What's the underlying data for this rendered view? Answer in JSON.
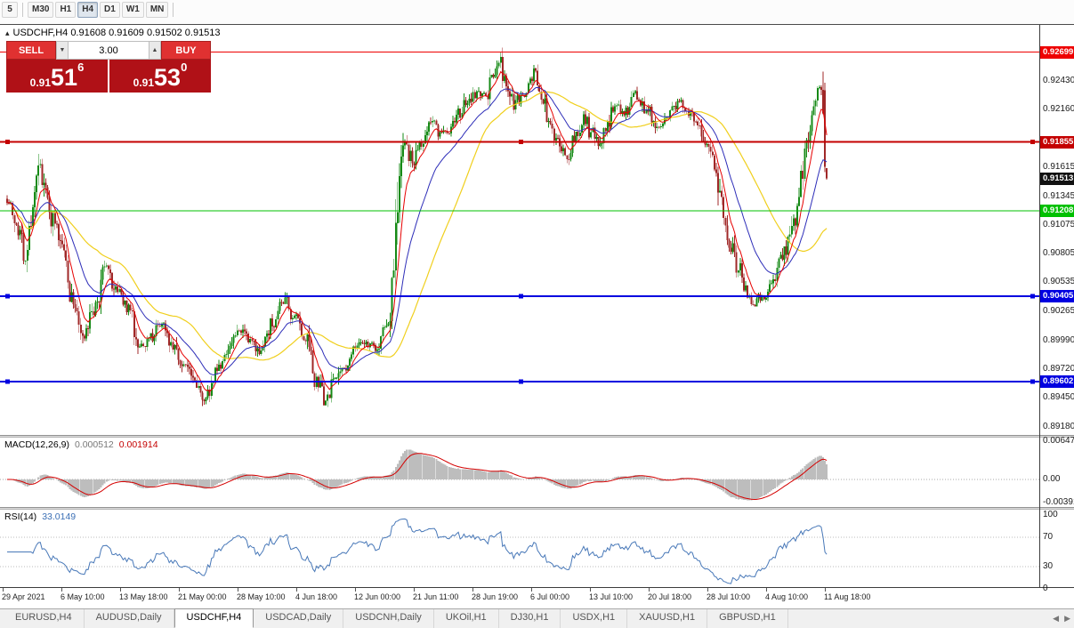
{
  "toolbar": {
    "timeframes": [
      {
        "label": "5",
        "active": false
      },
      {
        "label": "M30",
        "active": false
      },
      {
        "label": "H1",
        "active": false
      },
      {
        "label": "H4",
        "active": true
      },
      {
        "label": "D1",
        "active": false
      },
      {
        "label": "W1",
        "active": false
      },
      {
        "label": "MN",
        "active": false
      }
    ]
  },
  "icons": {
    "one_click_toggle": "▴",
    "spin_up": "▲",
    "spin_down": "▼",
    "tab_prev": "◀",
    "tab_next": "▶"
  },
  "chart": {
    "title": "USDCHF,H4 0.91608 0.91609 0.91502 0.91513"
  },
  "trade_panel": {
    "sell_label": "SELL",
    "buy_label": "BUY",
    "volume": "3.00",
    "bid_small": "0.91",
    "bid_big": "51",
    "bid_sup": "6",
    "ask_small": "0.91",
    "ask_big": "53",
    "ask_sup": "0"
  },
  "macd": {
    "label": "MACD(12,26,9)",
    "value_main": "0.000512",
    "value_signal": "0.001914",
    "y_tick_labels": [
      "0.00647",
      "0.00",
      "-0.00391"
    ]
  },
  "rsi": {
    "label": "RSI(14)",
    "value": "33.0149",
    "y_tick_labels": [
      "100",
      "70",
      "30",
      "0"
    ],
    "levels": [
      70,
      30
    ]
  },
  "price_axis": {
    "current_price_tag": "0.91513"
  },
  "tabs": {
    "items": [
      {
        "label": "EURUSD,H4",
        "active": false
      },
      {
        "label": "AUDUSD,Daily",
        "active": false
      },
      {
        "label": "USDCHF,H4",
        "active": true
      },
      {
        "label": "USDCAD,Daily",
        "active": false
      },
      {
        "label": "USDCNH,Daily",
        "active": false
      },
      {
        "label": "UKOil,H1",
        "active": false
      },
      {
        "label": "DJ30,H1",
        "active": false
      },
      {
        "label": "USDX,H1",
        "active": false
      },
      {
        "label": "XAUUSD,H1",
        "active": false
      },
      {
        "label": "GBPUSD,H1",
        "active": false
      }
    ]
  },
  "chart_data": {
    "type": "candlestick",
    "symbol": "USDCHF",
    "timeframe": "H4",
    "current_bar": {
      "open": 0.91608,
      "high": 0.91609,
      "low": 0.91502,
      "close": 0.91513
    },
    "penultimate_candle": {
      "open": 0.9234,
      "high": 0.9241,
      "low": 0.9157,
      "close": 0.9162
    },
    "bid": 0.91516,
    "ask": 0.9153,
    "colors": {
      "up": "#168a16",
      "down": "#a02828",
      "ma_fast": "#e60000",
      "ma_mid": "#2d2db8",
      "ma_slow": "#f0cf1d",
      "macd_hist": "#bdbdbd",
      "macd_signal": "#d40000",
      "rsi_line": "#4878b8"
    },
    "y_tick_labels": [
      "0.92430",
      "0.92160",
      "0.91615",
      "0.91345",
      "0.91075",
      "0.90805",
      "0.90535",
      "0.90265",
      "0.89990",
      "0.89720",
      "0.89450",
      "0.89180"
    ],
    "horizontal_lines": [
      {
        "label": "0.92699",
        "color": "#ee0000",
        "width": 1,
        "handles": false
      },
      {
        "label": "0.91855",
        "color": "#c40000",
        "width": 2,
        "handles": true
      },
      {
        "label": "0.91208",
        "color": "#00c000",
        "width": 1,
        "handles": false
      },
      {
        "label": "0.90405",
        "color": "#0000e0",
        "width": 2,
        "handles": true
      },
      {
        "label": "0.89602",
        "color": "#0000e0",
        "width": 2,
        "handles": true
      }
    ],
    "moving_averages": [
      {
        "period": 8,
        "method": "ema"
      },
      {
        "period": 24,
        "method": "ema"
      },
      {
        "period": 50,
        "method": "sma"
      }
    ],
    "indicators": [
      {
        "name": "MACD",
        "params": [
          12,
          26,
          9
        ],
        "current_main": 0.000512,
        "current_signal": 0.001914
      },
      {
        "name": "RSI",
        "params": [
          14
        ],
        "current": 33.0149,
        "levels": [
          70,
          30
        ]
      }
    ],
    "x_labels": [
      "29 Apr 2021",
      "6 May 10:00",
      "13 May 18:00",
      "21 May 00:00",
      "28 May 10:00",
      "4 Jun 18:00",
      "12 Jun 00:00",
      "21 Jun 11:00",
      "28 Jun 19:00",
      "6 Jul 00:00",
      "13 Jul 10:00",
      "20 Jul 18:00",
      "28 Jul 10:00",
      "4 Aug 10:00",
      "11 Aug 18:00"
    ],
    "candle_count": 446,
    "seed": 7,
    "price_path_anchors": [
      [
        0,
        0.9132
      ],
      [
        6,
        0.91
      ],
      [
        10,
        0.9079
      ],
      [
        14,
        0.9122
      ],
      [
        18,
        0.916
      ],
      [
        22,
        0.9132
      ],
      [
        26,
        0.9104
      ],
      [
        30,
        0.9086
      ],
      [
        36,
        0.9034
      ],
      [
        42,
        0.9002
      ],
      [
        48,
        0.903
      ],
      [
        54,
        0.9068
      ],
      [
        60,
        0.9042
      ],
      [
        66,
        0.903
      ],
      [
        72,
        0.8996
      ],
      [
        78,
        0.9002
      ],
      [
        84,
        0.9014
      ],
      [
        90,
        0.8996
      ],
      [
        96,
        0.8976
      ],
      [
        102,
        0.896
      ],
      [
        108,
        0.8944
      ],
      [
        114,
        0.8972
      ],
      [
        120,
        0.8988
      ],
      [
        126,
        0.9008
      ],
      [
        132,
        0.8996
      ],
      [
        138,
        0.899
      ],
      [
        144,
        0.9016
      ],
      [
        150,
        0.9038
      ],
      [
        156,
        0.902
      ],
      [
        162,
        0.8998
      ],
      [
        168,
        0.896
      ],
      [
        173,
        0.894
      ],
      [
        178,
        0.8962
      ],
      [
        183,
        0.8976
      ],
      [
        188,
        0.899
      ],
      [
        194,
        0.8996
      ],
      [
        200,
        0.8992
      ],
      [
        206,
        0.9012
      ],
      [
        210,
        0.9052
      ],
      [
        213,
        0.915
      ],
      [
        216,
        0.9186
      ],
      [
        220,
        0.9166
      ],
      [
        225,
        0.9186
      ],
      [
        230,
        0.9206
      ],
      [
        235,
        0.9192
      ],
      [
        240,
        0.9196
      ],
      [
        245,
        0.9212
      ],
      [
        250,
        0.9222
      ],
      [
        255,
        0.9232
      ],
      [
        260,
        0.9228
      ],
      [
        264,
        0.925
      ],
      [
        267,
        0.9263
      ],
      [
        271,
        0.9242
      ],
      [
        275,
        0.922
      ],
      [
        280,
        0.923
      ],
      [
        284,
        0.9242
      ],
      [
        287,
        0.925
      ],
      [
        291,
        0.9228
      ],
      [
        294,
        0.9206
      ],
      [
        299,
        0.9188
      ],
      [
        304,
        0.9172
      ],
      [
        309,
        0.919
      ],
      [
        313,
        0.9208
      ],
      [
        317,
        0.9194
      ],
      [
        321,
        0.9184
      ],
      [
        326,
        0.9204
      ],
      [
        330,
        0.922
      ],
      [
        336,
        0.9214
      ],
      [
        342,
        0.923
      ],
      [
        348,
        0.9214
      ],
      [
        354,
        0.9198
      ],
      [
        360,
        0.9214
      ],
      [
        364,
        0.9222
      ],
      [
        369,
        0.9214
      ],
      [
        374,
        0.9208
      ],
      [
        379,
        0.9188
      ],
      [
        384,
        0.9162
      ],
      [
        389,
        0.912
      ],
      [
        393,
        0.909
      ],
      [
        397,
        0.9068
      ],
      [
        400,
        0.9052
      ],
      [
        405,
        0.903
      ],
      [
        409,
        0.9038
      ],
      [
        413,
        0.9046
      ],
      [
        417,
        0.906
      ],
      [
        420,
        0.9072
      ],
      [
        424,
        0.909
      ],
      [
        427,
        0.911
      ],
      [
        430,
        0.9142
      ],
      [
        434,
        0.9182
      ],
      [
        437,
        0.9214
      ],
      [
        440,
        0.924
      ],
      [
        443,
        0.9232
      ],
      [
        445,
        0.9152
      ]
    ]
  }
}
